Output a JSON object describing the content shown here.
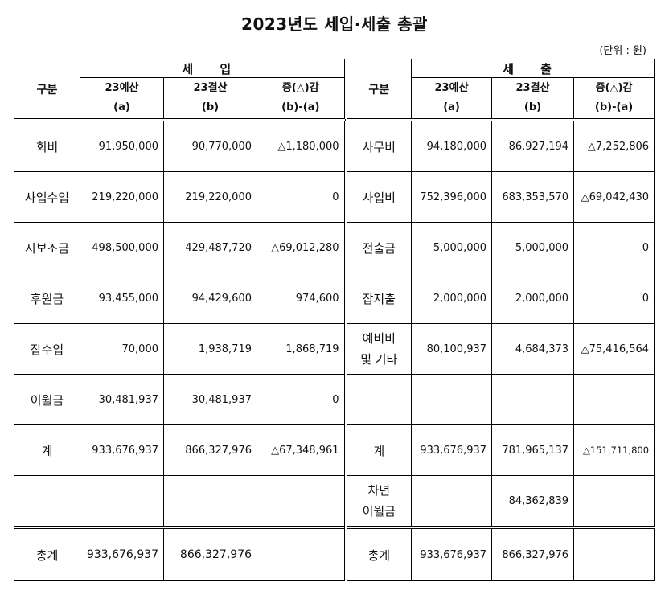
{
  "title": "2023년도 세입·세출 총괄",
  "unit": "(단위 : 원)",
  "income": {
    "group": "세 입",
    "col_gubun": "구분",
    "cols": [
      {
        "line1": "23예산",
        "line2": "(a)"
      },
      {
        "line1": "23결산",
        "line2": "(b)"
      },
      {
        "line1": "증(△)감",
        "line2": "(b)-(a)"
      }
    ],
    "rows": [
      {
        "label": "회비",
        "budget": "91,950,000",
        "settle": "90,770,000",
        "diff": "△1,180,000"
      },
      {
        "label": "사업수입",
        "budget": "219,220,000",
        "settle": "219,220,000",
        "diff": "0"
      },
      {
        "label": "시보조금",
        "budget": "498,500,000",
        "settle": "429,487,720",
        "diff": "△69,012,280"
      },
      {
        "label": "후원금",
        "budget": "93,455,000",
        "settle": "94,429,600",
        "diff": "974,600"
      },
      {
        "label": "잡수입",
        "budget": "70,000",
        "settle": "1,938,719",
        "diff": "1,868,719"
      },
      {
        "label": "이월금",
        "budget": "30,481,937",
        "settle": "30,481,937",
        "diff": "0"
      },
      {
        "label": "계",
        "budget": "933,676,937",
        "settle": "866,327,976",
        "diff": "△67,348,961"
      }
    ],
    "total": {
      "label": "총계",
      "budget": "933,676,937",
      "settle": "866,327,976",
      "diff": ""
    }
  },
  "expense": {
    "group": "세 출",
    "col_gubun": "구분",
    "cols": [
      {
        "line1": "23예산",
        "line2": "(a)"
      },
      {
        "line1": "23결산",
        "line2": "(b)"
      },
      {
        "line1": "증(△)감",
        "line2": "(b)-(a)"
      }
    ],
    "rows": [
      {
        "label": "사무비",
        "budget": "94,180,000",
        "settle": "86,927,194",
        "diff": "△7,252,806"
      },
      {
        "label": "사업비",
        "budget": "752,396,000",
        "settle": "683,353,570",
        "diff": "△69,042,430"
      },
      {
        "label": "전출금",
        "budget": "5,000,000",
        "settle": "5,000,000",
        "diff": "0"
      },
      {
        "label": "잡지출",
        "budget": "2,000,000",
        "settle": "2,000,000",
        "diff": "0"
      },
      {
        "label1": "예비비",
        "label2": "및 기타",
        "budget": "80,100,937",
        "settle": "4,684,373",
        "diff": "△75,416,564"
      },
      {
        "label": "",
        "budget": "",
        "settle": "",
        "diff": ""
      },
      {
        "label": "계",
        "budget": "933,676,937",
        "settle": "781,965,137",
        "diff": "△151,711,800"
      },
      {
        "label1": "차년",
        "label2": "이월금",
        "budget": "",
        "settle": "84,362,839",
        "diff": ""
      }
    ],
    "total": {
      "label": "총계",
      "budget": "933,676,937",
      "settle": "866,327,976",
      "diff": ""
    }
  }
}
